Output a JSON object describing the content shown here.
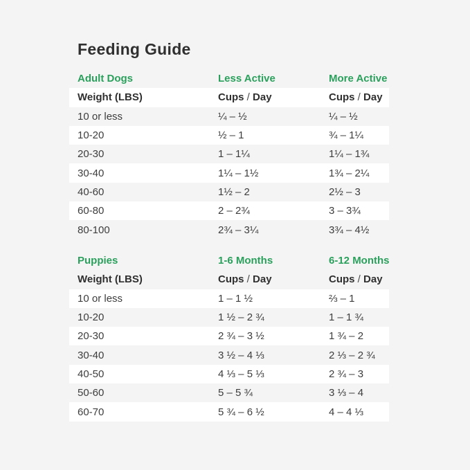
{
  "page": {
    "title": "Feeding Guide",
    "background_color": "#f4f4f4",
    "accent_green": "#2aa05c",
    "stripe_white": "#ffffff"
  },
  "labels": {
    "cups": "Cups",
    "slash": " / ",
    "day": "Day"
  },
  "adult_table": {
    "section_label": "Adult Dogs",
    "col2_label": "Less Active",
    "col3_label": "More Active",
    "header": {
      "col1": "Weight (LBS)"
    },
    "rows": [
      {
        "weight": "10 or less",
        "less_active": "¼ – ½",
        "more_active": "¼ – ½"
      },
      {
        "weight": "10-20",
        "less_active": "½ – 1",
        "more_active": "¾ – 1¼"
      },
      {
        "weight": "20-30",
        "less_active": "1 – 1¼",
        "more_active": "1¼ – 1¾"
      },
      {
        "weight": "30-40",
        "less_active": "1¼ – 1½",
        "more_active": "1¾ – 2¼"
      },
      {
        "weight": "40-60",
        "less_active": "1½ – 2",
        "more_active": "2½ – 3"
      },
      {
        "weight": "60-80",
        "less_active": "2 – 2¾",
        "more_active": "3 – 3¾"
      },
      {
        "weight": "80-100",
        "less_active": "2¾ – 3¼",
        "more_active": "3¾ – 4½"
      }
    ]
  },
  "puppy_table": {
    "section_label": "Puppies",
    "col2_label": "1-6 Months",
    "col3_label": "6-12 Months",
    "header": {
      "col1": "Weight (LBS)"
    },
    "rows": [
      {
        "weight": "10 or less",
        "months_1_6": "1 – 1 ½",
        "months_6_12": "⅔ – 1"
      },
      {
        "weight": "10-20",
        "months_1_6": "1 ½ – 2 ¾",
        "months_6_12": "1 – 1 ¾"
      },
      {
        "weight": "20-30",
        "months_1_6": "2 ¾ – 3 ½",
        "months_6_12": "1 ¾ – 2"
      },
      {
        "weight": "30-40",
        "months_1_6": "3 ½ – 4 ⅓",
        "months_6_12": "2 ⅓ – 2 ¾"
      },
      {
        "weight": "40-50",
        "months_1_6": "4 ⅓ – 5 ⅓",
        "months_6_12": "2 ¾ – 3"
      },
      {
        "weight": "50-60",
        "months_1_6": "5 – 5 ¾",
        "months_6_12": "3 ⅓ – 4"
      },
      {
        "weight": "60-70",
        "months_1_6": "5 ¾ – 6 ½",
        "months_6_12": "4 – 4 ⅓"
      }
    ]
  }
}
